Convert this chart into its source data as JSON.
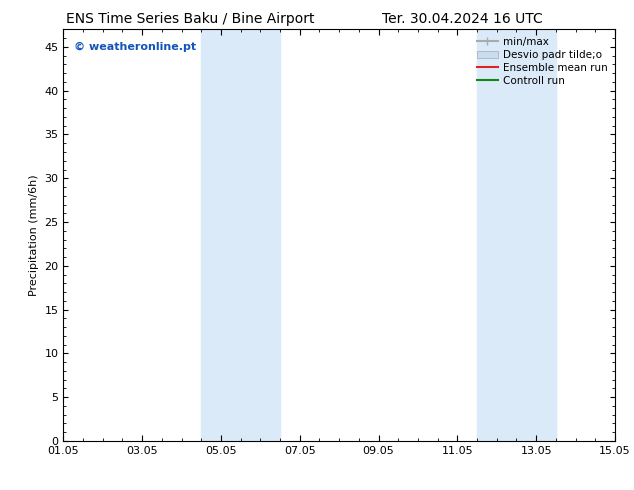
{
  "title_left": "ENS Time Series Baku / Bine Airport",
  "title_right": "Ter. 30.04.2024 16 UTC",
  "ylabel": "Precipitation (mm/6h)",
  "ylim": [
    0,
    47
  ],
  "yticks": [
    0,
    5,
    10,
    15,
    20,
    25,
    30,
    35,
    40,
    45
  ],
  "xtick_labels": [
    "01.05",
    "03.05",
    "05.05",
    "07.05",
    "09.05",
    "11.05",
    "13.05",
    "15.05"
  ],
  "xtick_positions": [
    0,
    2,
    4,
    6,
    8,
    10,
    12,
    14
  ],
  "xlim": [
    0,
    14
  ],
  "shaded_bands": [
    {
      "xmin": 3.5,
      "xmax": 5.5,
      "color": "#daeaf8"
    },
    {
      "xmin": 10.5,
      "xmax": 12.5,
      "color": "#daeaf8"
    }
  ],
  "watermark_text": "© weatheronline.pt",
  "watermark_color": "#1155bb",
  "legend_items": [
    {
      "label": "min/max",
      "color": "#aaaaaa",
      "lw": 1.5,
      "type": "line_with_caps"
    },
    {
      "label": "Desvio padr tilde;o",
      "color": "#c8ddf0",
      "lw": 8,
      "type": "patch"
    },
    {
      "label": "Ensemble mean run",
      "color": "#dd2222",
      "lw": 1.5,
      "type": "line"
    },
    {
      "label": "Controll run",
      "color": "#118811",
      "lw": 1.5,
      "type": "line"
    }
  ],
  "bg_color": "#ffffff",
  "font_size_title": 10,
  "font_size_tick": 8,
  "font_size_ylabel": 8,
  "font_size_legend": 7.5,
  "font_size_watermark": 8
}
